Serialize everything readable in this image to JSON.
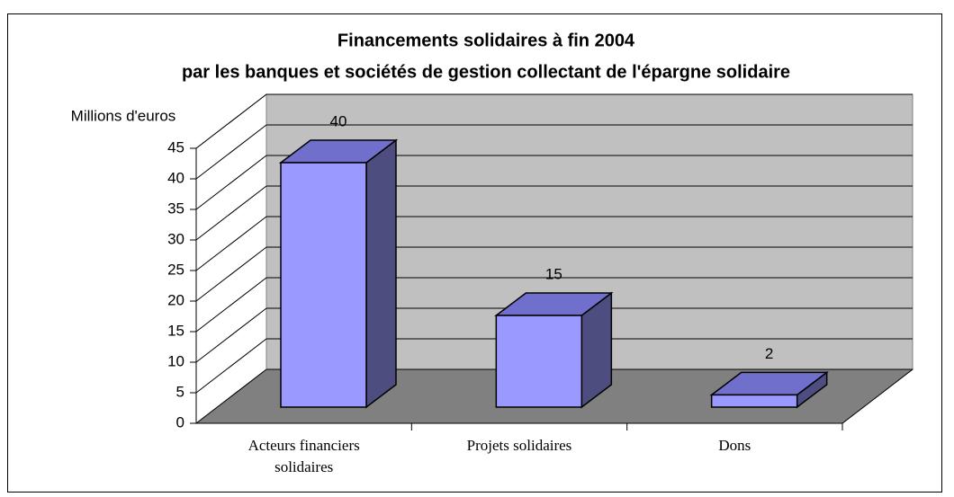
{
  "chart_data": {
    "type": "bar3d",
    "title": [
      "Financements solidaires à fin 2004",
      "par les banques et sociétés de gestion collectant de l'épargne solidaire"
    ],
    "y_label": "Millions d'euros",
    "categories": [
      "Acteurs financiers solidaires",
      "Projets solidaires",
      "Dons"
    ],
    "values": [
      40,
      15,
      2
    ],
    "color": "#9999ff",
    "ylim": [
      0,
      45
    ],
    "yticks": [
      0,
      5,
      10,
      15,
      20,
      25,
      30,
      35,
      40,
      45
    ],
    "grid": true
  }
}
